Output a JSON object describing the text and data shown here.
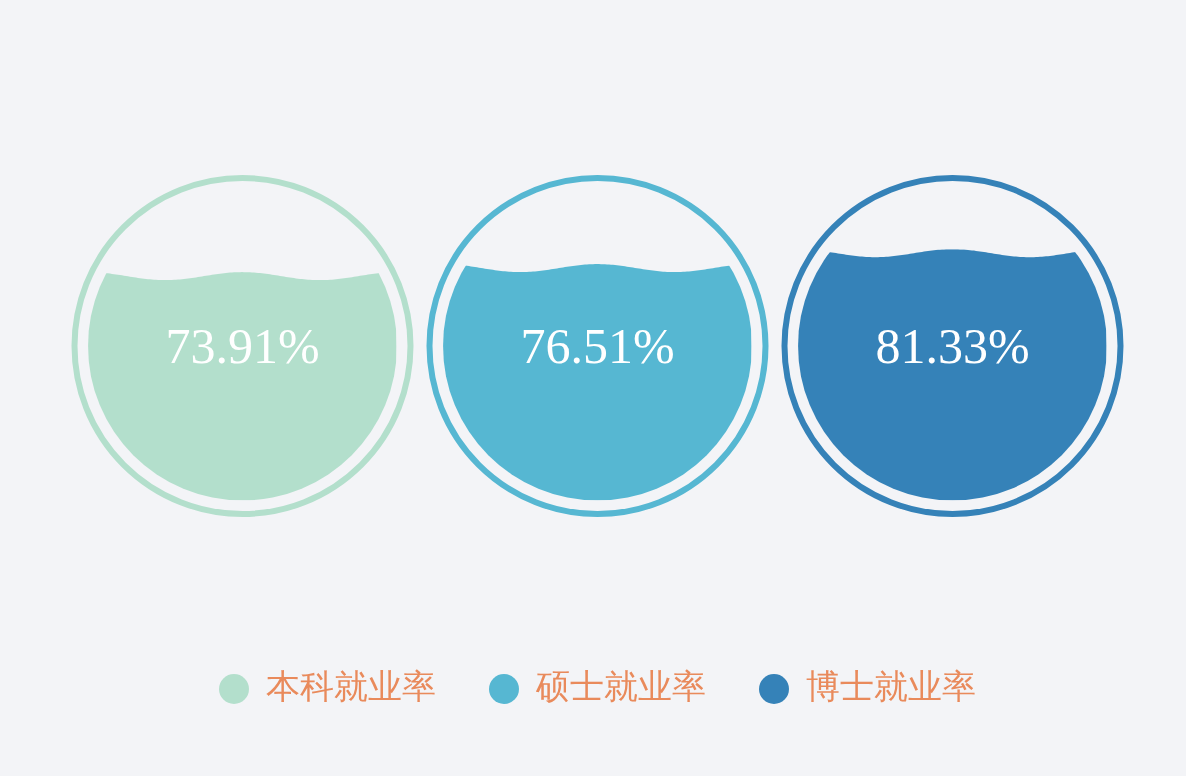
{
  "chart_data": {
    "type": "bar",
    "categories": [
      null
    ],
    "series": [
      {
        "name": "本科就业率",
        "color": "#b3dfcc",
        "values": [
          73.91
        ],
        "value_labels": [
          "73.91%"
        ]
      },
      {
        "name": "硕士就业率",
        "color": "#56b7d2",
        "values": [
          76.51
        ],
        "value_labels": [
          "76.51%"
        ]
      },
      {
        "name": "博士就业率",
        "color": "#3582b8",
        "values": [
          81.33
        ],
        "value_labels": [
          "81.33%"
        ]
      }
    ],
    "legend": "bottom"
  }
}
